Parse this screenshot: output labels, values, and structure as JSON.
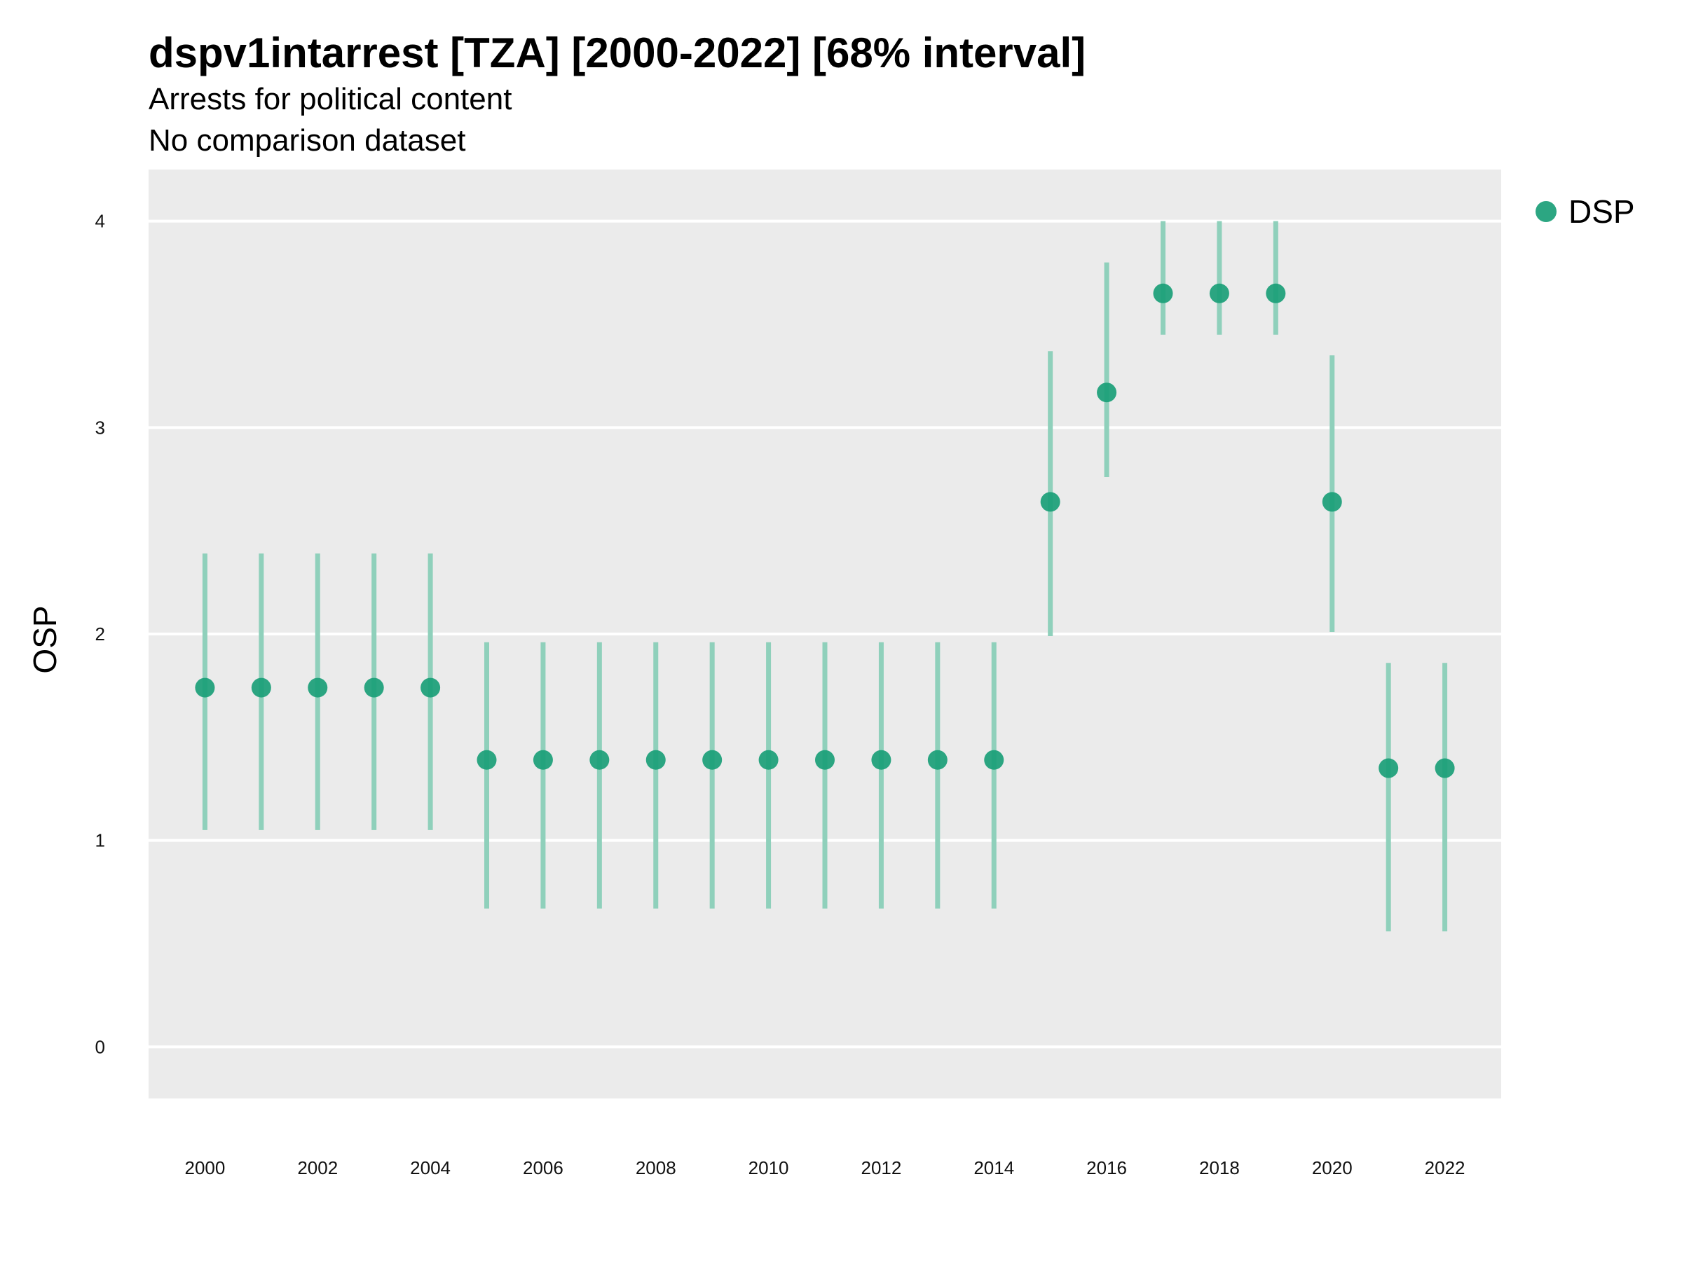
{
  "chart_data": {
    "type": "scatter",
    "title": "dspv1intarrest [TZA] [2000-2022] [68% interval]",
    "subtitle_lines": [
      "Arrests for political content",
      "No comparison dataset"
    ],
    "xlabel": "",
    "ylabel": "OSP",
    "ylim": [
      -0.25,
      4.25
    ],
    "xlim": [
      1999,
      2023
    ],
    "y_ticks": [
      0,
      1,
      2,
      3,
      4
    ],
    "x_ticks": [
      2000,
      2002,
      2004,
      2006,
      2008,
      2010,
      2012,
      2014,
      2016,
      2018,
      2020,
      2022
    ],
    "grid": true,
    "legend_position": "right",
    "colors": {
      "point": "#1a9e77",
      "interval": "#8fd0bb",
      "panel": "#ebebeb",
      "grid": "#ffffff"
    },
    "series": [
      {
        "name": "DSP",
        "points": [
          {
            "x": 2000,
            "y": 1.74,
            "lo": 1.05,
            "hi": 2.39
          },
          {
            "x": 2001,
            "y": 1.74,
            "lo": 1.05,
            "hi": 2.39
          },
          {
            "x": 2002,
            "y": 1.74,
            "lo": 1.05,
            "hi": 2.39
          },
          {
            "x": 2003,
            "y": 1.74,
            "lo": 1.05,
            "hi": 2.39
          },
          {
            "x": 2004,
            "y": 1.74,
            "lo": 1.05,
            "hi": 2.39
          },
          {
            "x": 2005,
            "y": 1.39,
            "lo": 0.67,
            "hi": 1.96
          },
          {
            "x": 2006,
            "y": 1.39,
            "lo": 0.67,
            "hi": 1.96
          },
          {
            "x": 2007,
            "y": 1.39,
            "lo": 0.67,
            "hi": 1.96
          },
          {
            "x": 2008,
            "y": 1.39,
            "lo": 0.67,
            "hi": 1.96
          },
          {
            "x": 2009,
            "y": 1.39,
            "lo": 0.67,
            "hi": 1.96
          },
          {
            "x": 2010,
            "y": 1.39,
            "lo": 0.67,
            "hi": 1.96
          },
          {
            "x": 2011,
            "y": 1.39,
            "lo": 0.67,
            "hi": 1.96
          },
          {
            "x": 2012,
            "y": 1.39,
            "lo": 0.67,
            "hi": 1.96
          },
          {
            "x": 2013,
            "y": 1.39,
            "lo": 0.67,
            "hi": 1.96
          },
          {
            "x": 2014,
            "y": 1.39,
            "lo": 0.67,
            "hi": 1.96
          },
          {
            "x": 2015,
            "y": 2.64,
            "lo": 1.99,
            "hi": 3.37
          },
          {
            "x": 2016,
            "y": 3.17,
            "lo": 2.76,
            "hi": 3.8
          },
          {
            "x": 2017,
            "y": 3.65,
            "lo": 3.45,
            "hi": 4.0
          },
          {
            "x": 2018,
            "y": 3.65,
            "lo": 3.45,
            "hi": 4.0
          },
          {
            "x": 2019,
            "y": 3.65,
            "lo": 3.45,
            "hi": 4.0
          },
          {
            "x": 2020,
            "y": 2.64,
            "lo": 2.01,
            "hi": 3.35
          },
          {
            "x": 2021,
            "y": 1.35,
            "lo": 0.56,
            "hi": 1.86
          },
          {
            "x": 2022,
            "y": 1.35,
            "lo": 0.56,
            "hi": 1.86
          }
        ]
      }
    ]
  }
}
